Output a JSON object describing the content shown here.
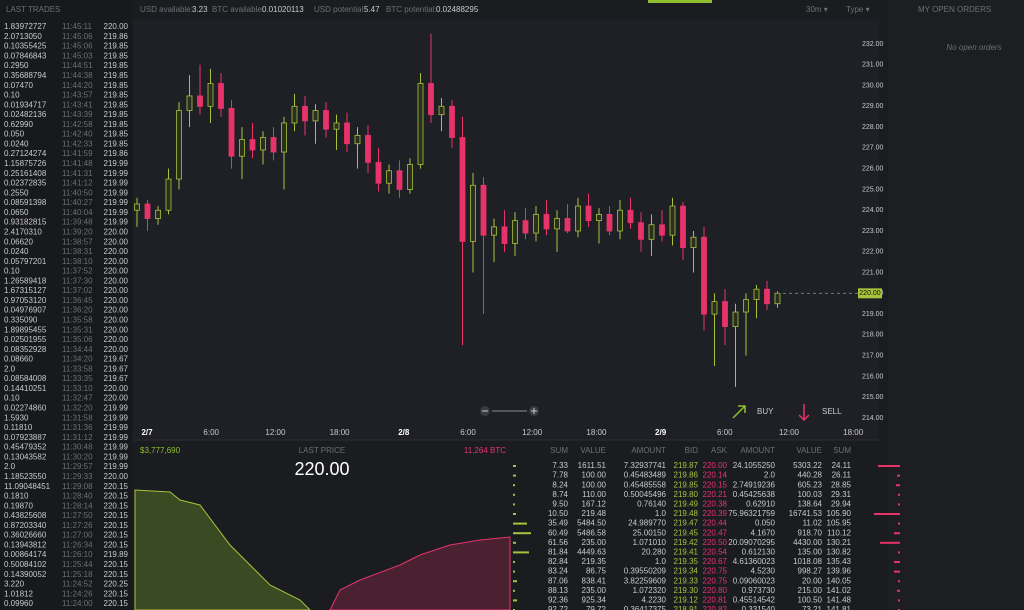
{
  "header": {
    "usd_available_label": "USD available:",
    "usd_available": "3.23",
    "btc_available_label": "BTC available:",
    "btc_available": "0.01020113",
    "usd_potential_label": "USD potential:",
    "usd_potential": "5.47",
    "btc_potential_label": "BTC potential:",
    "btc_potential": "0.02488295",
    "interval": "30m ▾",
    "type": "Type ▾"
  },
  "last_trades": {
    "title": "LAST TRADES",
    "rows": [
      [
        "1.83972727",
        "11:45:11",
        "220.00"
      ],
      [
        "2.0713050",
        "11:45:06",
        "219.86"
      ],
      [
        "0.10355425",
        "11:45:06",
        "219.85"
      ],
      [
        "0.07846843",
        "11:45:03",
        "219.85"
      ],
      [
        "0.2950",
        "11:44:51",
        "219.85"
      ],
      [
        "0.35688794",
        "11:44:38",
        "219.85"
      ],
      [
        "0.07470",
        "11:44:20",
        "219.85"
      ],
      [
        "0.10",
        "11:43:57",
        "219.85"
      ],
      [
        "0.01934717",
        "11:43:41",
        "219.85"
      ],
      [
        "0.02482136",
        "11:43:39",
        "219.85"
      ],
      [
        "0.62990",
        "11:42:58",
        "219.85"
      ],
      [
        "0.050",
        "11:42:40",
        "219.85"
      ],
      [
        "0.0240",
        "11:42:33",
        "219.85"
      ],
      [
        "0.27124274",
        "11:41:59",
        "219.86"
      ],
      [
        "1.15875726",
        "11:41:48",
        "219.99"
      ],
      [
        "0.25161408",
        "11:41:31",
        "219.99"
      ],
      [
        "0.02372835",
        "11:41:12",
        "219.99"
      ],
      [
        "0.2550",
        "11:40:50",
        "219.99"
      ],
      [
        "0.08591398",
        "11:40:27",
        "219.99"
      ],
      [
        "0.0650",
        "11:40:04",
        "219.99"
      ],
      [
        "0.93182815",
        "11:39:48",
        "219.99"
      ],
      [
        "2.4170310",
        "11:39:20",
        "220.00"
      ],
      [
        "0.06620",
        "11:38:57",
        "220.00"
      ],
      [
        "0.0240",
        "11:38:31",
        "220.00"
      ],
      [
        "0.05797201",
        "11:38:10",
        "220.00"
      ],
      [
        "0.10",
        "11:37:52",
        "220.00"
      ],
      [
        "1.26589418",
        "11:37:30",
        "220.00"
      ],
      [
        "1.67315127",
        "11:37:02",
        "220.00"
      ],
      [
        "0.97053120",
        "11:36:45",
        "220.00"
      ],
      [
        "0.04976907",
        "11:36:20",
        "220.00"
      ],
      [
        "0.335090",
        "11:35:58",
        "220.00"
      ],
      [
        "1.89895455",
        "11:35:31",
        "220.00"
      ],
      [
        "0.02501955",
        "11:35:06",
        "220.00"
      ],
      [
        "0.08352928",
        "11:34:44",
        "220.00"
      ],
      [
        "0.08660",
        "11:34:20",
        "219.67"
      ],
      [
        "2.0",
        "11:33:58",
        "219.67"
      ],
      [
        "0.08584008",
        "11:33:35",
        "219.67"
      ],
      [
        "0.14410251",
        "11:33:10",
        "220.00"
      ],
      [
        "0.10",
        "11:32:47",
        "220.00"
      ],
      [
        "0.02274860",
        "11:32:20",
        "219.99"
      ],
      [
        "1.5930",
        "11:31:58",
        "219.99"
      ],
      [
        "0.11810",
        "11:31:36",
        "219.99"
      ],
      [
        "0.07923887",
        "11:31:12",
        "219.99"
      ],
      [
        "0.45479352",
        "11:30:48",
        "219.99"
      ],
      [
        "0.13043582",
        "11:30:20",
        "219.99"
      ],
      [
        "2.0",
        "11:29:57",
        "219.99"
      ],
      [
        "1.18523550",
        "11:29:33",
        "220.00"
      ],
      [
        "11.09048451",
        "11:29:08",
        "220.15"
      ],
      [
        "0.1810",
        "11:28:40",
        "220.15"
      ],
      [
        "0.19870",
        "11:28:14",
        "220.15"
      ],
      [
        "0.43825608",
        "11:27:50",
        "220.15"
      ],
      [
        "0.87203340",
        "11:27:26",
        "220.15"
      ],
      [
        "0.36026660",
        "11:27:00",
        "220.15"
      ],
      [
        "0.13943812",
        "11:26:34",
        "220.15"
      ],
      [
        "0.00864174",
        "11:26:10",
        "219.89"
      ],
      [
        "0.50084102",
        "11:25:44",
        "220.15"
      ],
      [
        "0.14390052",
        "11:25:18",
        "220.15"
      ],
      [
        "3.220",
        "11:24:52",
        "220.25"
      ],
      [
        "1.01812",
        "11:24:26",
        "220.15"
      ],
      [
        "0.09960",
        "11:24:00",
        "220.15"
      ]
    ]
  },
  "chart": {
    "yticks": [
      {
        "value": 232,
        "label": "232.00"
      },
      {
        "value": 231,
        "label": "231.00"
      },
      {
        "value": 230,
        "label": "230.00"
      },
      {
        "value": 229,
        "label": "229.00"
      },
      {
        "value": 228,
        "label": "228.00"
      },
      {
        "value": 227,
        "label": "227.00"
      },
      {
        "value": 226,
        "label": "226.00"
      },
      {
        "value": 225,
        "label": "225.00"
      },
      {
        "value": 224,
        "label": "224.00"
      },
      {
        "value": 223,
        "label": "223.00"
      },
      {
        "value": 222,
        "label": "222.00"
      },
      {
        "value": 221,
        "label": "221.00"
      },
      {
        "value": 220,
        "label": "220.00"
      },
      {
        "value": 219,
        "label": "219.00"
      },
      {
        "value": 218,
        "label": "218.00"
      },
      {
        "value": 217,
        "label": "217.00"
      },
      {
        "value": 216,
        "label": "216.00"
      },
      {
        "value": 215,
        "label": "215.00"
      },
      {
        "value": 214,
        "label": "214.00"
      }
    ],
    "ylim": [
      214,
      232
    ],
    "xticks": [
      "2/7",
      "6:00",
      "12:00",
      "18:00",
      "2/8",
      "6:00",
      "12:00",
      "18:00",
      "2/9",
      "6:00",
      "12:00",
      "18:00"
    ],
    "current_price": {
      "value": 220,
      "label": "220.00"
    },
    "buy": "BUY",
    "sell": "SELL",
    "candles": [
      [
        224.0,
        224.6,
        223.2,
        224.3
      ],
      [
        224.3,
        224.5,
        223.0,
        223.6
      ],
      [
        223.6,
        224.2,
        223.3,
        224.0
      ],
      [
        224.0,
        226.0,
        223.8,
        225.5
      ],
      [
        225.5,
        229.2,
        225.0,
        228.8
      ],
      [
        228.8,
        230.5,
        228.0,
        229.5
      ],
      [
        229.5,
        231.0,
        228.6,
        229.0
      ],
      [
        229.0,
        230.8,
        228.2,
        230.1
      ],
      [
        230.1,
        230.6,
        228.5,
        228.9
      ],
      [
        228.9,
        229.3,
        226.0,
        226.6
      ],
      [
        226.6,
        228.0,
        225.5,
        227.4
      ],
      [
        227.4,
        228.2,
        226.5,
        226.9
      ],
      [
        226.9,
        227.8,
        226.2,
        227.5
      ],
      [
        227.5,
        228.0,
        226.4,
        226.8
      ],
      [
        226.8,
        228.5,
        225.0,
        228.2
      ],
      [
        228.2,
        229.6,
        227.8,
        229.0
      ],
      [
        229.0,
        229.5,
        227.6,
        228.3
      ],
      [
        228.3,
        229.1,
        227.2,
        228.8
      ],
      [
        228.8,
        229.2,
        227.5,
        227.9
      ],
      [
        227.9,
        228.6,
        226.9,
        228.2
      ],
      [
        228.2,
        228.7,
        226.8,
        227.2
      ],
      [
        227.2,
        228.0,
        226.0,
        227.6
      ],
      [
        227.6,
        228.1,
        225.8,
        226.3
      ],
      [
        226.3,
        227.0,
        224.9,
        225.3
      ],
      [
        225.3,
        226.2,
        224.8,
        225.9
      ],
      [
        225.9,
        226.4,
        224.6,
        225.0
      ],
      [
        225.0,
        226.5,
        224.8,
        226.2
      ],
      [
        226.2,
        230.6,
        226.0,
        230.1
      ],
      [
        230.1,
        232.5,
        228.2,
        228.6
      ],
      [
        228.6,
        229.4,
        227.8,
        229.0
      ],
      [
        229.0,
        229.3,
        227.0,
        227.5
      ],
      [
        227.5,
        228.5,
        217.5,
        222.5
      ],
      [
        222.5,
        225.8,
        221.0,
        225.2
      ],
      [
        225.2,
        225.6,
        219.0,
        222.8
      ],
      [
        222.8,
        223.6,
        221.5,
        223.2
      ],
      [
        223.2,
        224.0,
        222.0,
        222.4
      ],
      [
        222.4,
        223.9,
        221.8,
        223.5
      ],
      [
        223.5,
        224.1,
        222.6,
        222.9
      ],
      [
        222.9,
        224.2,
        222.5,
        223.8
      ],
      [
        223.8,
        224.5,
        222.8,
        223.1
      ],
      [
        223.1,
        224.0,
        222.0,
        223.6
      ],
      [
        223.6,
        224.3,
        222.9,
        223.0
      ],
      [
        223.0,
        224.6,
        222.7,
        224.2
      ],
      [
        224.2,
        224.8,
        223.2,
        223.5
      ],
      [
        223.5,
        224.1,
        222.4,
        223.8
      ],
      [
        223.8,
        224.2,
        222.8,
        223.0
      ],
      [
        223.0,
        224.5,
        222.6,
        224.0
      ],
      [
        224.0,
        224.6,
        223.1,
        223.4
      ],
      [
        223.4,
        223.9,
        222.0,
        222.6
      ],
      [
        222.6,
        223.8,
        221.8,
        223.3
      ],
      [
        223.3,
        224.0,
        222.5,
        222.8
      ],
      [
        222.8,
        224.6,
        222.3,
        224.2
      ],
      [
        224.2,
        224.4,
        221.6,
        222.2
      ],
      [
        222.2,
        223.0,
        221.0,
        222.7
      ],
      [
        222.7,
        223.2,
        218.2,
        219.0
      ],
      [
        219.0,
        220.0,
        216.5,
        219.6
      ],
      [
        219.6,
        220.2,
        217.5,
        218.4
      ],
      [
        218.4,
        219.5,
        215.5,
        219.1
      ],
      [
        219.1,
        220.0,
        217.0,
        219.7
      ],
      [
        219.7,
        220.4,
        218.8,
        220.2
      ],
      [
        220.2,
        220.6,
        219.2,
        219.5
      ],
      [
        219.5,
        220.1,
        219.3,
        220.0
      ]
    ]
  },
  "market": {
    "bid_total": "$3,777,690",
    "last_price_label": "LAST PRICE",
    "last_price": "220.00",
    "ask_total": "11,264 BTC"
  },
  "order_book": {
    "headers": [
      "SUM",
      "VALUE",
      "AMOUNT",
      "BID",
      "ASK",
      "AMOUNT",
      "VALUE",
      "SUM"
    ],
    "rows": [
      [
        "7.33",
        "1611.51",
        "7.32937741",
        "219.87",
        "220.00",
        "24.1055250",
        "5303.22",
        "24.11"
      ],
      [
        "7.78",
        "100.00",
        "0.45483489",
        "219.86",
        "220.14",
        "2.0",
        "440.28",
        "26.11"
      ],
      [
        "8.24",
        "100.00",
        "0.45485558",
        "219.85",
        "220.15",
        "2.74919236",
        "605.23",
        "28.85"
      ],
      [
        "8.74",
        "110.00",
        "0.50045496",
        "219.80",
        "220.21",
        "0.45425638",
        "100.03",
        "29.31"
      ],
      [
        "9.50",
        "167.12",
        "0.76140",
        "219.49",
        "220.38",
        "0.62910",
        "138.64",
        "29.94"
      ],
      [
        "10.50",
        "219.48",
        "1.0",
        "219.48",
        "220.39",
        "75.96321759",
        "16741.53",
        "105.90"
      ],
      [
        "35.49",
        "5484.50",
        "24.989770",
        "219.47",
        "220.44",
        "0.050",
        "11.02",
        "105.95"
      ],
      [
        "60.49",
        "5486.58",
        "25.00150",
        "219.45",
        "220.47",
        "4.1670",
        "918.70",
        "110.12"
      ],
      [
        "61.56",
        "235.00",
        "1.071010",
        "219.42",
        "220.50",
        "20.09070295",
        "4430.00",
        "130.21"
      ],
      [
        "81.84",
        "4449.63",
        "20.280",
        "219.41",
        "220.54",
        "0.612130",
        "135.00",
        "130.82"
      ],
      [
        "82.84",
        "219.35",
        "1.0",
        "219.35",
        "220.67",
        "4.61360023",
        "1018.08",
        "135.43"
      ],
      [
        "83.24",
        "86.75",
        "0.39550209",
        "219.34",
        "220.75",
        "4.5230",
        "998.27",
        "139.96"
      ],
      [
        "87.06",
        "838.41",
        "3.82259609",
        "219.33",
        "220.75",
        "0.09060023",
        "20.00",
        "140.05"
      ],
      [
        "88.13",
        "235.00",
        "1.072320",
        "219.30",
        "220.80",
        "0.973730",
        "215.00",
        "141.02"
      ],
      [
        "92.36",
        "925.34",
        "4.2230",
        "219.12",
        "220.81",
        "0.45514542",
        "100.50",
        "141.48"
      ],
      [
        "92.72",
        "79.72",
        "0.36417375",
        "218.91",
        "220.82",
        "0.331540",
        "73.21",
        "141.81"
      ]
    ]
  },
  "open_orders": {
    "title": "MY OPEN ORDERS",
    "empty": "No open orders"
  }
}
